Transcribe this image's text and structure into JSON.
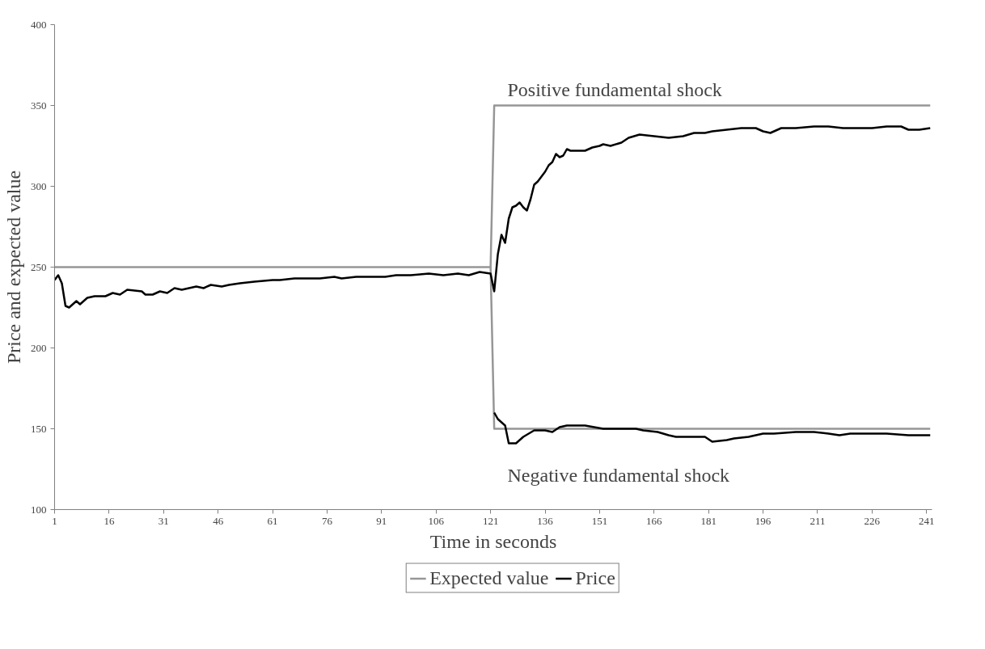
{
  "chart_data": {
    "type": "line",
    "xlabel": "Time in seconds",
    "ylabel": "Price and expected value",
    "xlim": [
      1,
      242.5
    ],
    "xticks": [
      1,
      16,
      31,
      46,
      61,
      76,
      91,
      106,
      121,
      136,
      151,
      166,
      181,
      196,
      211,
      226,
      241
    ],
    "ylim": [
      100,
      400
    ],
    "yticks": [
      100,
      150,
      200,
      250,
      300,
      350,
      400
    ],
    "grid": false,
    "legend": "bottom",
    "marker": "none",
    "line_style": "solid",
    "annotations": [
      "Positive fundamental shock",
      "Negative fundamental shock"
    ],
    "series": [
      {
        "name": "Expected value",
        "color": "#969696",
        "x": [
          1,
          121,
          122,
          242
        ],
        "values": [
          250,
          250,
          350,
          350
        ]
      },
      {
        "color": "#969696",
        "x": [
          121,
          122,
          242
        ],
        "values": [
          250,
          150,
          150
        ]
      },
      {
        "name": "Price",
        "color": "#000000",
        "x": [
          1,
          2,
          3,
          4,
          5,
          7,
          8,
          10,
          12,
          15,
          17,
          19,
          21,
          25,
          26,
          28,
          30,
          32,
          34,
          36,
          38,
          40,
          42,
          44,
          47,
          49,
          52,
          56,
          61,
          63,
          67,
          71,
          74,
          78,
          80,
          84,
          88,
          92,
          95,
          99,
          104,
          108,
          112,
          115,
          118,
          121,
          122,
          123,
          124,
          125,
          126,
          127,
          128,
          129,
          130,
          131,
          132,
          133,
          134,
          135,
          136,
          137,
          138,
          139,
          140,
          141,
          142,
          143,
          145,
          147,
          149,
          151,
          152,
          154,
          157,
          159,
          162,
          166,
          170,
          174,
          177,
          180,
          182,
          186,
          190,
          194,
          196,
          198,
          201,
          205,
          210,
          214,
          218,
          222,
          226,
          230,
          234,
          236,
          239,
          242
        ],
        "values": [
          242,
          245,
          240,
          226,
          225,
          229,
          227,
          231,
          232,
          232,
          234,
          233,
          236,
          235,
          233,
          233,
          235,
          234,
          237,
          236,
          237,
          238,
          237,
          239,
          238,
          239,
          240,
          241,
          242,
          242,
          243,
          243,
          243,
          244,
          243,
          244,
          244,
          244,
          245,
          245,
          246,
          245,
          246,
          245,
          247,
          246,
          235,
          258,
          270,
          265,
          280,
          287,
          288,
          290,
          287,
          285,
          292,
          301,
          303,
          306,
          309,
          313,
          315,
          320,
          318,
          319,
          323,
          322,
          322,
          322,
          324,
          325,
          326,
          325,
          327,
          330,
          332,
          331,
          330,
          331,
          333,
          333,
          334,
          335,
          336,
          336,
          334,
          333,
          336,
          336,
          337,
          337,
          336,
          336,
          336,
          337,
          337,
          335,
          335,
          336
        ]
      },
      {
        "color": "#000000",
        "x": [
          122,
          123,
          125,
          126,
          128,
          130,
          133,
          136,
          138,
          140,
          142,
          147,
          152,
          156,
          161,
          163,
          167,
          170,
          172,
          177,
          180,
          182,
          186,
          188,
          192,
          196,
          199,
          205,
          210,
          214,
          217,
          220,
          224,
          230,
          236,
          242
        ],
        "values": [
          160,
          156,
          152,
          141,
          141,
          145,
          149,
          149,
          148,
          151,
          152,
          152,
          150,
          150,
          150,
          149,
          148,
          146,
          145,
          145,
          145,
          142,
          143,
          144,
          145,
          147,
          147,
          148,
          148,
          147,
          146,
          147,
          147,
          147,
          146,
          146
        ]
      }
    ]
  }
}
